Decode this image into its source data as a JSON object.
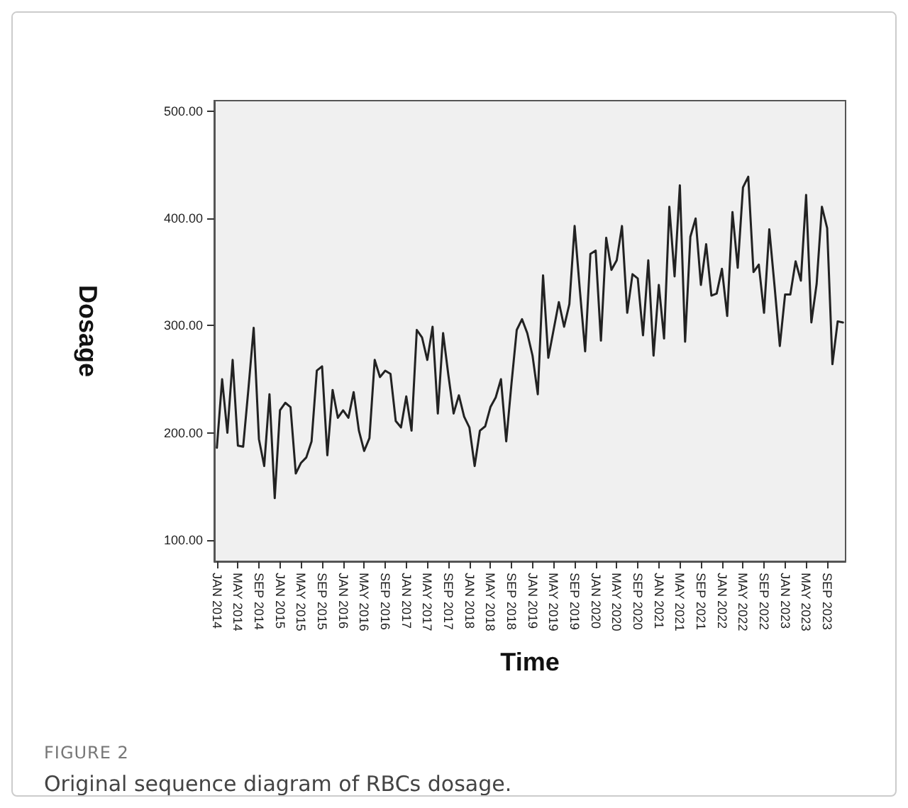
{
  "chart_data": {
    "type": "line",
    "xlabel": "Time",
    "ylabel": "Dosage",
    "categories": [
      "JAN 2014",
      null,
      null,
      null,
      "MAY 2014",
      null,
      null,
      null,
      "SEP 2014",
      null,
      null,
      null,
      "JAN 2015",
      null,
      null,
      null,
      "MAY 2015",
      null,
      null,
      null,
      "SEP 2015",
      null,
      null,
      null,
      "JAN 2016",
      null,
      null,
      null,
      "MAY 2016",
      null,
      null,
      null,
      "SEP 2016",
      null,
      null,
      null,
      "JAN 2017",
      null,
      null,
      null,
      "MAY 2017",
      null,
      null,
      null,
      "SEP 2017",
      null,
      null,
      null,
      "JAN 2018",
      null,
      null,
      null,
      "MAY 2018",
      null,
      null,
      null,
      "SEP 2018",
      null,
      null,
      null,
      "JAN 2019",
      null,
      null,
      null,
      "MAY 2019",
      null,
      null,
      null,
      "SEP 2019",
      null,
      null,
      null,
      "JAN 2020",
      null,
      null,
      null,
      "MAY 2020",
      null,
      null,
      null,
      "SEP 2020",
      null,
      null,
      null,
      "JAN 2021",
      null,
      null,
      null,
      "MAY 2021",
      null,
      null,
      null,
      "SEP 2021",
      null,
      null,
      null,
      "JAN 2022",
      null,
      null,
      null,
      "MAY 2022",
      null,
      null,
      null,
      "SEP 2022",
      null,
      null,
      null,
      "JAN 2023",
      null,
      null,
      null,
      "MAY 2023",
      null,
      null,
      null,
      "SEP 2023",
      null,
      null,
      null
    ],
    "series": [
      {
        "color": "#222222",
        "values": [
          186,
          250,
          200,
          268,
          188,
          187,
          241,
          298,
          194,
          169,
          236,
          139,
          221,
          228,
          224,
          162,
          172,
          177,
          192,
          258,
          262,
          179,
          240,
          214,
          221,
          214,
          238,
          202,
          183,
          195,
          268,
          252,
          258,
          255,
          211,
          205,
          234,
          202,
          296,
          289,
          268,
          299,
          218,
          293,
          254,
          218,
          235,
          215,
          205,
          169,
          202,
          206,
          224,
          233,
          250,
          192,
          246,
          296,
          306,
          293,
          272,
          236,
          347,
          270,
          296,
          322,
          299,
          320,
          393,
          333,
          276,
          367,
          370,
          286,
          382,
          352,
          361,
          393,
          312,
          348,
          344,
          291,
          361,
          272,
          338,
          288,
          411,
          346,
          431,
          285,
          383,
          400,
          338,
          376,
          328,
          330,
          353,
          309,
          406,
          354,
          429,
          439,
          350,
          357,
          312,
          390,
          337,
          281,
          329,
          329,
          360,
          342,
          422,
          303,
          339,
          411,
          391,
          264,
          304,
          303
        ]
      }
    ],
    "ylim": [
      80,
      510
    ],
    "yticks": [
      {
        "value": 100,
        "label": "100.00"
      },
      {
        "value": 200,
        "label": "200.00"
      },
      {
        "value": 300,
        "label": "300.00"
      },
      {
        "value": 400,
        "label": "400.00"
      },
      {
        "value": 500,
        "label": "500.00"
      }
    ],
    "grid": false,
    "marker": "none",
    "line_style": "solid",
    "annotations": [
      "FIGURE 2",
      "Original sequence diagram of RBCs dosage."
    ]
  }
}
